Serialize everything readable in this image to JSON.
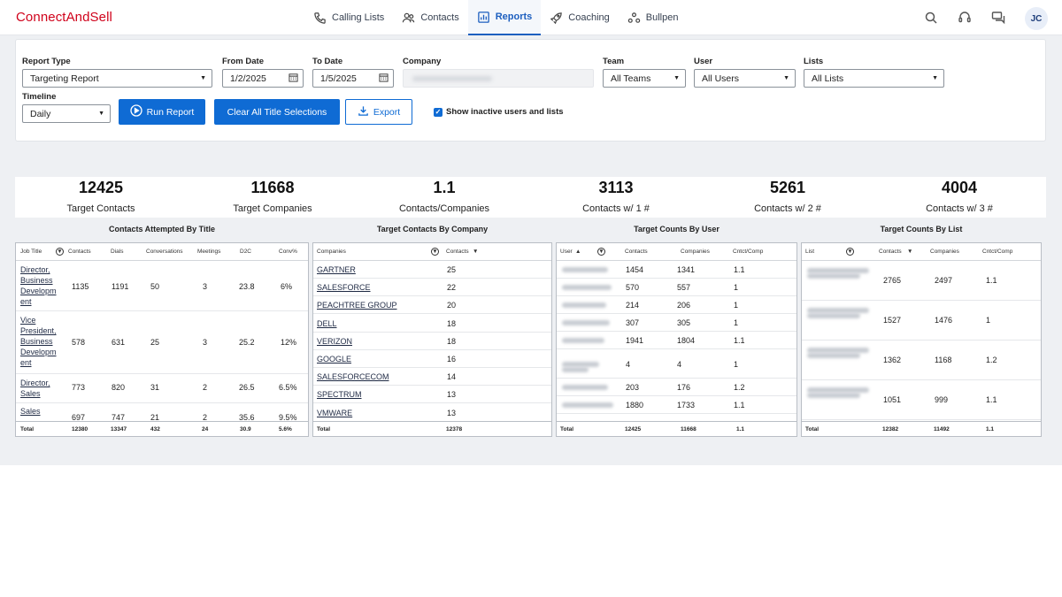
{
  "app": {
    "logo": "ConnectAndSell",
    "user_initials": "JC"
  },
  "nav": {
    "items": [
      {
        "label": "Calling Lists",
        "icon": "phone-icon"
      },
      {
        "label": "Contacts",
        "icon": "people-icon"
      },
      {
        "label": "Reports",
        "icon": "bar-chart-icon"
      },
      {
        "label": "Coaching",
        "icon": "rocket-icon"
      },
      {
        "label": "Bullpen",
        "icon": "group-icon"
      }
    ],
    "active": "Reports"
  },
  "filters": {
    "report_type_label": "Report Type",
    "report_type_value": "Targeting Report",
    "from_date_label": "From Date",
    "from_date_value": "1/2/2025",
    "to_date_label": "To Date",
    "to_date_value": "1/5/2025",
    "company_label": "Company",
    "team_label": "Team",
    "team_value": "All Teams",
    "user_label": "User",
    "user_value": "All Users",
    "lists_label": "Lists",
    "lists_value": "All Lists",
    "timeline_label": "Timeline",
    "timeline_value": "Daily",
    "run_report": "Run Report",
    "clear_titles": "Clear All Title Selections",
    "export": "Export",
    "show_inactive": "Show inactive users and lists"
  },
  "stats": [
    {
      "value": "12425",
      "label": "Target Contacts"
    },
    {
      "value": "11668",
      "label": "Target Companies"
    },
    {
      "value": "1.1",
      "label": "Contacts/Companies"
    },
    {
      "value": "3113",
      "label": "Contacts w/ 1 #"
    },
    {
      "value": "5261",
      "label": "Contacts w/ 2 #"
    },
    {
      "value": "4004",
      "label": "Contacts w/ 3 #"
    }
  ],
  "panels": {
    "by_title": {
      "title": "Contacts Attempted By Title",
      "headers": [
        "Job Title",
        "Contacts",
        "Dials",
        "Conversations",
        "Meetings",
        "D2C",
        "Conv%"
      ],
      "rows": [
        [
          "Director, Business Developm ent",
          "1135",
          "1191",
          "50",
          "3",
          "23.8",
          "6%"
        ],
        [
          "Vice President, Business Developm ent",
          "578",
          "631",
          "25",
          "3",
          "25.2",
          "12%"
        ],
        [
          "Director, Sales",
          "773",
          "820",
          "31",
          "2",
          "26.5",
          "6.5%"
        ],
        [
          "Sales",
          "697",
          "747",
          "21",
          "2",
          "35.6",
          "9.5%"
        ]
      ],
      "footer": [
        "Total",
        "12380",
        "13347",
        "432",
        "24",
        "30.9",
        "5.6%"
      ]
    },
    "by_company": {
      "title": "Target Contacts By Company",
      "headers": [
        "Companies",
        "Contacts"
      ],
      "rows": [
        [
          "GARTNER",
          "25"
        ],
        [
          "SALESFORCE",
          "22"
        ],
        [
          "PEACHTREE GROUP",
          "20"
        ],
        [
          "DELL",
          "18"
        ],
        [
          "VERIZON",
          "18"
        ],
        [
          "GOOGLE",
          "16"
        ],
        [
          "SALESFORCECOM",
          "14"
        ],
        [
          "SPECTRUM",
          "13"
        ],
        [
          "VMWARE",
          "13"
        ]
      ],
      "footer": [
        "Total",
        "12378"
      ]
    },
    "by_user": {
      "title": "Target Counts By User",
      "headers": [
        "User",
        "Contacts",
        "Companies",
        "Cntct/Comp"
      ],
      "rows": [
        [
          "1454",
          "1341",
          "1.1"
        ],
        [
          "570",
          "557",
          "1"
        ],
        [
          "214",
          "206",
          "1"
        ],
        [
          "307",
          "305",
          "1"
        ],
        [
          "1941",
          "1804",
          "1.1"
        ],
        [
          "4",
          "4",
          "1"
        ],
        [
          "203",
          "176",
          "1.2"
        ],
        [
          "1880",
          "1733",
          "1.1"
        ]
      ],
      "footer": [
        "Total",
        "12425",
        "11668",
        "1.1"
      ]
    },
    "by_list": {
      "title": "Target Counts By List",
      "headers": [
        "List",
        "Contacts",
        "Companies",
        "Cntct/Comp"
      ],
      "rows": [
        [
          "2765",
          "2497",
          "1.1"
        ],
        [
          "1527",
          "1476",
          "1"
        ],
        [
          "1362",
          "1168",
          "1.2"
        ],
        [
          "1051",
          "999",
          "1.1"
        ]
      ],
      "footer": [
        "Total",
        "12382",
        "11492",
        "1.1"
      ]
    }
  }
}
